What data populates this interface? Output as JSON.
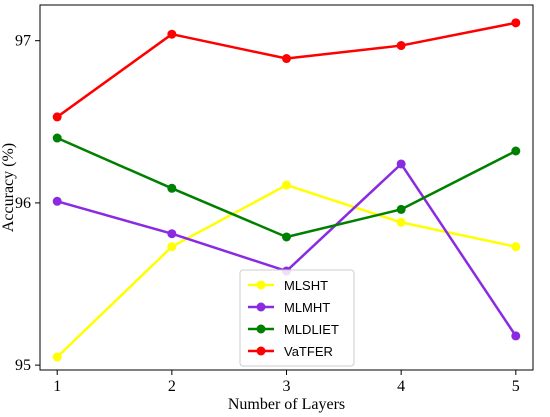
{
  "chart_data": {
    "type": "line",
    "title": "",
    "xlabel": "Number of Layers",
    "ylabel": "Accuracy (%)",
    "x": [
      1,
      2,
      3,
      4,
      5
    ],
    "x_ticks": [
      1,
      2,
      3,
      4,
      5
    ],
    "y_ticks": [
      95,
      96,
      97
    ],
    "xlim": [
      0.85,
      5.15
    ],
    "ylim": [
      94.97,
      97.22
    ],
    "grid": false,
    "legend_position": "lower-center",
    "series": [
      {
        "name": "MLSHT",
        "color": "#ffff00",
        "values": [
          95.05,
          95.73,
          96.11,
          95.88,
          95.73
        ]
      },
      {
        "name": "MLMHT",
        "color": "#8a2be2",
        "values": [
          96.01,
          95.81,
          95.58,
          96.24,
          95.18
        ]
      },
      {
        "name": "MLDLIET",
        "color": "#008000",
        "values": [
          96.4,
          96.09,
          95.79,
          95.96,
          96.32
        ]
      },
      {
        "name": "VaTFER",
        "color": "#ff0000",
        "values": [
          96.53,
          97.04,
          96.89,
          96.97,
          97.11
        ]
      }
    ]
  }
}
